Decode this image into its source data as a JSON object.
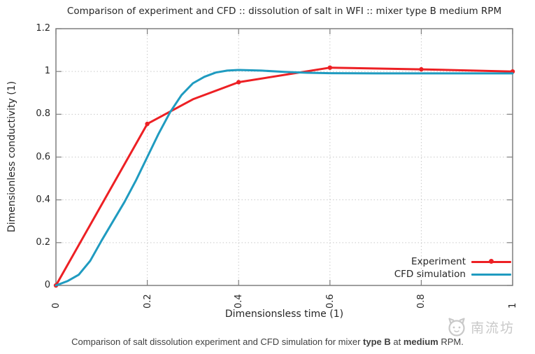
{
  "chart_data": {
    "type": "line",
    "title": "Comparison of experiment and CFD :: dissolution of salt in WFI :: mixer type B medium RPM",
    "xlabel": "Dimensionsless time (1)",
    "ylabel": "Dimensionless conductivity (1)",
    "xlim": [
      0,
      1
    ],
    "ylim": [
      0,
      1.2
    ],
    "xticks": {
      "values": [
        0,
        0.2,
        0.4,
        0.6,
        0.8,
        1
      ],
      "labels": [
        "0",
        "0.2",
        "0.4",
        "0.6",
        "0.8",
        "1"
      ]
    },
    "yticks": {
      "values": [
        0,
        0.2,
        0.4,
        0.6,
        0.8,
        1,
        1.2
      ],
      "labels": [
        "0",
        "0.2",
        "0.4",
        "0.6",
        "0.8",
        "1",
        "1.2"
      ]
    },
    "grid": "dotted",
    "legend_position": "inside-bottom-right",
    "series": [
      {
        "name": "Experiment",
        "color": "#ed2024",
        "style": "linespoints",
        "x": [
          0,
          0.2,
          0.3,
          0.4,
          0.6,
          0.8,
          1.0
        ],
        "y": [
          0,
          0.755,
          0.87,
          0.95,
          1.018,
          1.01,
          1.0
        ],
        "markers": [
          [
            0,
            0
          ],
          [
            0.2,
            0.755
          ],
          [
            0.4,
            0.95
          ],
          [
            0.6,
            1.018
          ],
          [
            0.8,
            1.01
          ],
          [
            1.0,
            1.0
          ]
        ]
      },
      {
        "name": "CFD simulation",
        "color": "#1f9bc0",
        "style": "line",
        "x": [
          0,
          0.025,
          0.05,
          0.075,
          0.1,
          0.125,
          0.15,
          0.175,
          0.2,
          0.225,
          0.25,
          0.275,
          0.3,
          0.325,
          0.35,
          0.375,
          0.4,
          0.45,
          0.5,
          0.55,
          0.6,
          0.7,
          0.8,
          0.9,
          1.0
        ],
        "y": [
          0,
          0.02,
          0.05,
          0.115,
          0.21,
          0.3,
          0.39,
          0.49,
          0.6,
          0.71,
          0.81,
          0.89,
          0.945,
          0.975,
          0.995,
          1.004,
          1.007,
          1.004,
          0.998,
          0.994,
          0.992,
          0.991,
          0.991,
          0.991,
          0.991
        ],
        "markers": []
      }
    ]
  },
  "caption": {
    "segments": [
      {
        "text": "Comparison of salt dissolution experiment and CFD simulation for mixer ",
        "bold": false
      },
      {
        "text": "type B",
        "bold": true
      },
      {
        "text": " at ",
        "bold": false
      },
      {
        "text": "medium",
        "bold": true
      },
      {
        "text": " RPM.",
        "bold": false
      }
    ]
  },
  "watermark": {
    "text": "南流坊"
  }
}
